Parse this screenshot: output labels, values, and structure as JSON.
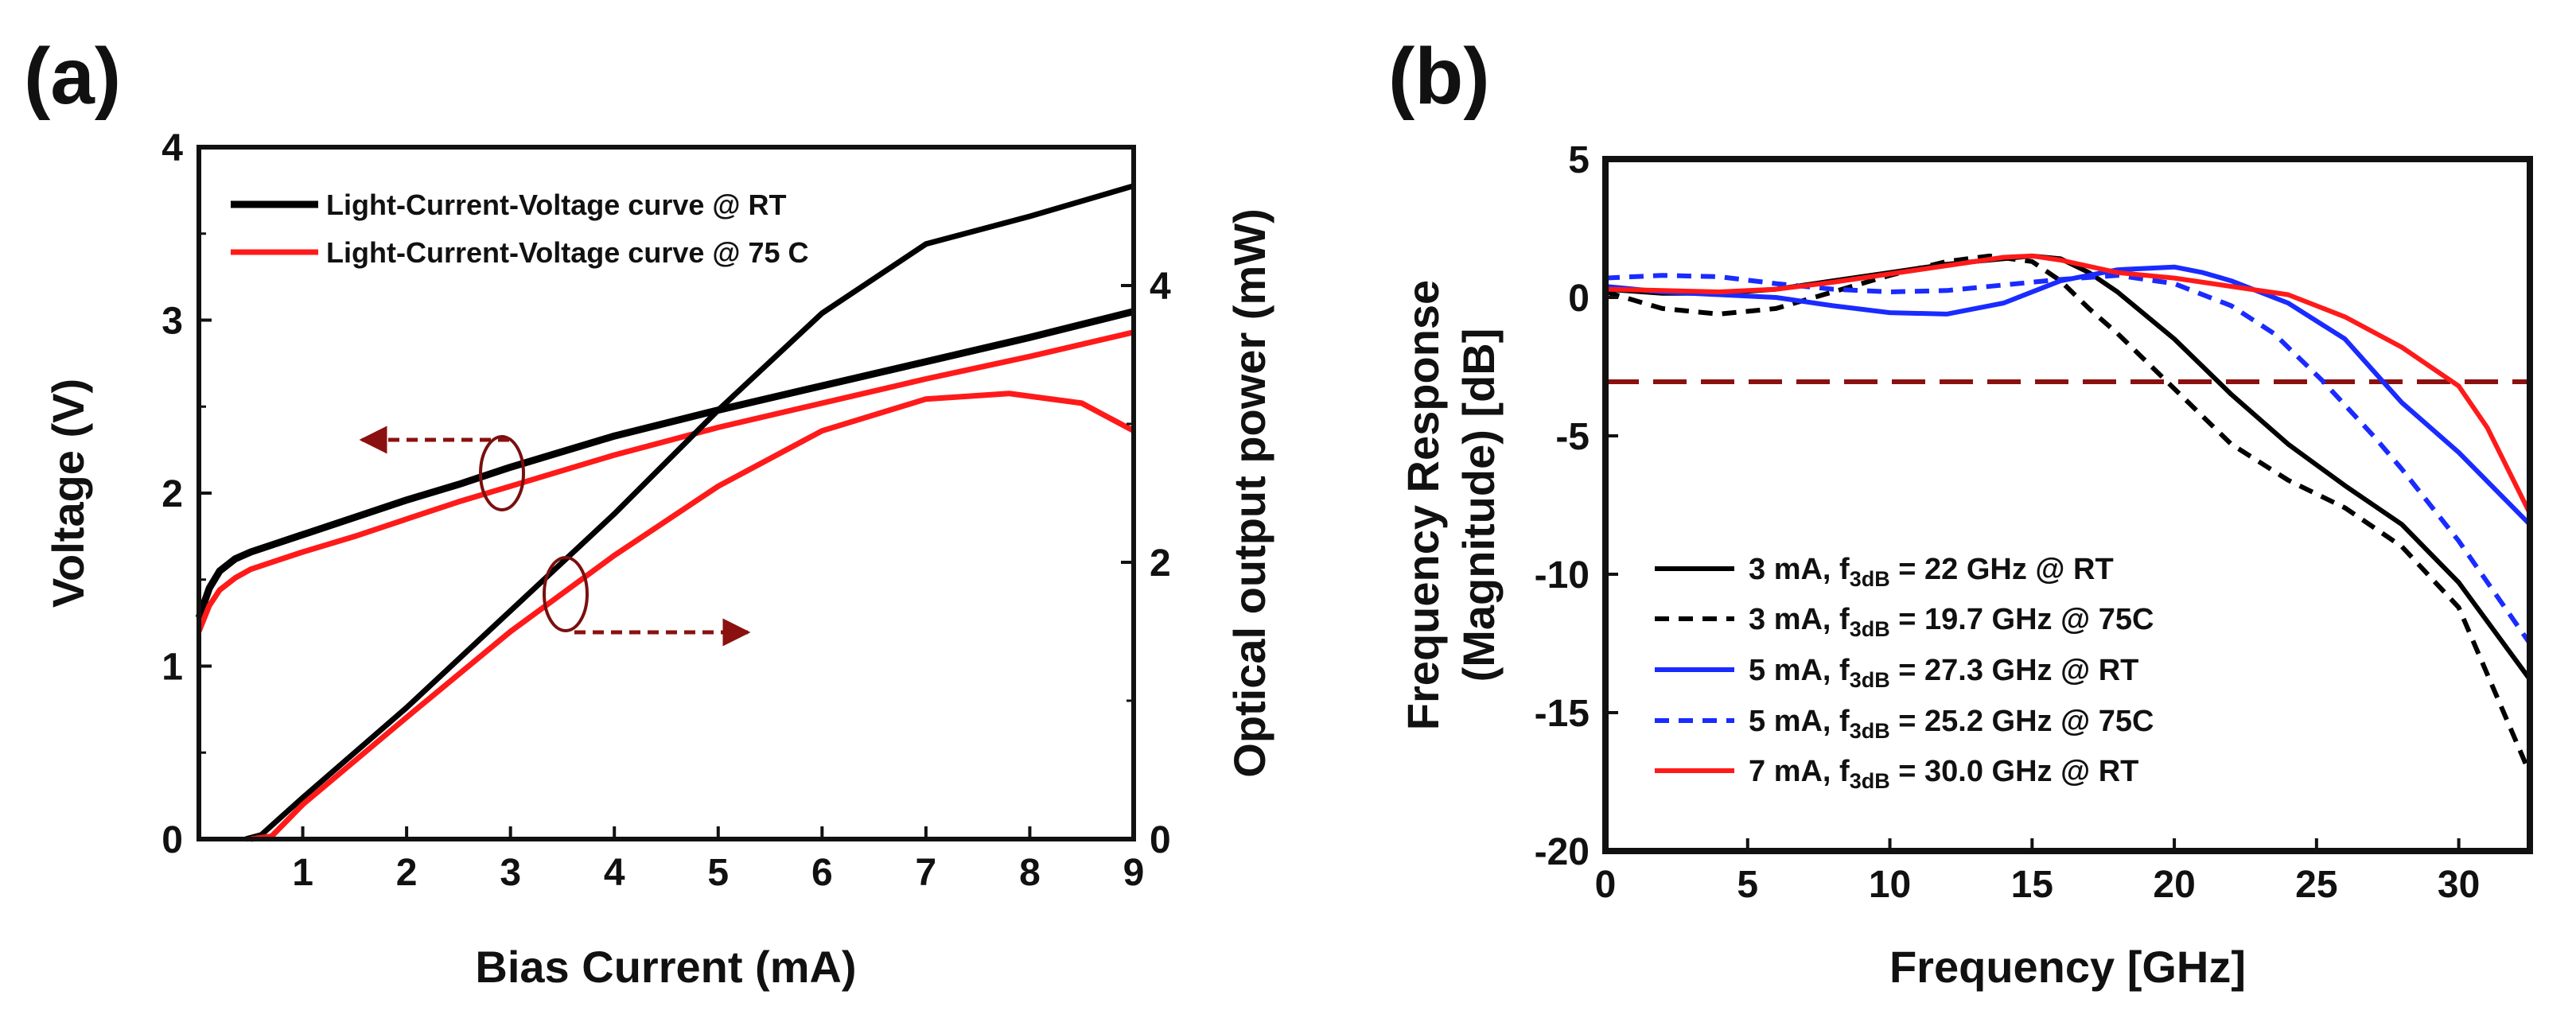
{
  "chart_data": [
    {
      "type": "line",
      "panel": "(a)",
      "xlabel": "Bias Current (mA)",
      "ylabel": "Voltage (V)",
      "y2label": "Optical output power (mW)",
      "xlim": [
        0,
        9
      ],
      "ylim": [
        0,
        4
      ],
      "y2lim": [
        0,
        5
      ],
      "xticks": [
        1,
        2,
        3,
        4,
        5,
        6,
        7,
        8,
        9
      ],
      "yticks": [
        0,
        1,
        2,
        3,
        4
      ],
      "y2ticks": [
        0,
        2,
        4
      ],
      "legend_position": "top-left",
      "legend": [
        {
          "label": "Light-Current-Voltage curve @ RT",
          "color": "#000000"
        },
        {
          "label": "Light-Current-Voltage curve @ 75 C",
          "color": "#ff1a1a"
        }
      ],
      "annotations": [
        {
          "type": "arrow",
          "direction": "left",
          "marks": "voltage curves",
          "axis": "Voltage (V)"
        },
        {
          "type": "arrow",
          "direction": "right",
          "marks": "power curves",
          "axis": "Optical output power (mW)"
        }
      ],
      "series": [
        {
          "name": "Voltage @ RT",
          "color": "#000000",
          "axis": "left",
          "x": [
            0,
            0.1,
            0.2,
            0.35,
            0.5,
            0.75,
            1,
            1.5,
            2,
            2.5,
            3,
            3.5,
            4,
            5,
            6,
            7,
            8,
            9
          ],
          "y": [
            1.28,
            1.45,
            1.55,
            1.62,
            1.66,
            1.71,
            1.76,
            1.86,
            1.96,
            2.05,
            2.15,
            2.24,
            2.33,
            2.48,
            2.62,
            2.76,
            2.9,
            3.05
          ]
        },
        {
          "name": "Voltage @ 75 C",
          "color": "#ff1a1a",
          "axis": "left",
          "x": [
            0,
            0.1,
            0.2,
            0.35,
            0.5,
            0.75,
            1,
            1.5,
            2,
            2.5,
            3,
            3.5,
            4,
            5,
            6,
            7,
            8,
            9
          ],
          "y": [
            1.2,
            1.35,
            1.44,
            1.51,
            1.56,
            1.61,
            1.66,
            1.75,
            1.85,
            1.95,
            2.04,
            2.13,
            2.22,
            2.38,
            2.52,
            2.66,
            2.79,
            2.93
          ]
        },
        {
          "name": "Power @ RT",
          "color": "#000000",
          "axis": "right",
          "x": [
            0.45,
            0.6,
            1,
            2,
            3,
            4,
            5,
            6,
            7,
            8,
            9
          ],
          "y": [
            0,
            0.03,
            0.3,
            0.95,
            1.65,
            2.35,
            3.1,
            3.8,
            4.3,
            4.5,
            4.72
          ]
        },
        {
          "name": "Power @ 75 C",
          "color": "#ff1a1a",
          "axis": "right",
          "x": [
            0.5,
            0.7,
            1,
            2,
            3,
            4,
            5,
            6,
            7,
            7.8,
            8.5,
            9
          ],
          "y": [
            0,
            0.02,
            0.25,
            0.88,
            1.5,
            2.05,
            2.55,
            2.95,
            3.18,
            3.22,
            3.15,
            2.95
          ]
        }
      ]
    },
    {
      "type": "line",
      "panel": "(b)",
      "xlabel": "Frequency [GHz]",
      "ylabel": "Frequency Response",
      "ylabel2": "(Magnitude) [dB]",
      "xlim": [
        0,
        32.5
      ],
      "ylim": [
        -20,
        5
      ],
      "xticks": [
        0,
        5,
        10,
        15,
        20,
        25,
        30
      ],
      "yticks": [
        5,
        0,
        -5,
        -10,
        -15,
        -20
      ],
      "reference_line": {
        "y": -3,
        "color": "#8b1010",
        "style": "dashed"
      },
      "legend_position": "bottom-left",
      "legend": [
        {
          "current": "3 mA, f",
          "sub": "3dB",
          "rest": " = 22 GHz @ RT",
          "color": "#000000",
          "style": "solid"
        },
        {
          "current": "3 mA, f",
          "sub": "3dB",
          "rest": " = 19.7 GHz @ 75C",
          "color": "#000000",
          "style": "dashed"
        },
        {
          "current": "5 mA, f",
          "sub": "3dB",
          "rest": " = 27.3 GHz @ RT",
          "color": "#1a2bff",
          "style": "solid"
        },
        {
          "current": "5 mA, f",
          "sub": "3dB",
          "rest": " = 25.2 GHz @ 75C",
          "color": "#1a2bff",
          "style": "dashed"
        },
        {
          "current": "7 mA, f",
          "sub": "3dB",
          "rest": " = 30.0 GHz @ RT",
          "color": "#ff1a1a",
          "style": "solid"
        }
      ],
      "series": [
        {
          "name": "3 mA @ RT",
          "color": "#000000",
          "dash": false,
          "x": [
            0,
            2,
            4,
            6,
            8,
            10,
            12,
            14,
            15,
            16,
            17,
            18,
            20,
            22,
            24,
            26,
            28,
            30,
            32.5
          ],
          "y": [
            0.3,
            0.15,
            0.15,
            0.3,
            0.6,
            0.9,
            1.2,
            1.4,
            1.5,
            1.4,
            0.9,
            0.2,
            -1.5,
            -3.5,
            -5.3,
            -6.8,
            -8.2,
            -10.3,
            -13.8
          ]
        },
        {
          "name": "3 mA @ 75C",
          "color": "#000000",
          "dash": true,
          "x": [
            0,
            2,
            4,
            6,
            8,
            10,
            12,
            13.5,
            15,
            16,
            17,
            18,
            19.7,
            22,
            24,
            26,
            28,
            30,
            32.5
          ],
          "y": [
            0.2,
            -0.4,
            -0.6,
            -0.4,
            0.2,
            0.8,
            1.3,
            1.5,
            1.3,
            0.6,
            -0.4,
            -1.3,
            -3.0,
            -5.3,
            -6.6,
            -7.6,
            -9.0,
            -11.2,
            -17.2
          ]
        },
        {
          "name": "5 mA @ RT",
          "color": "#1a2bff",
          "dash": false,
          "x": [
            0,
            2,
            4,
            6,
            8,
            10,
            12,
            14,
            16,
            18,
            20,
            21,
            22,
            24,
            26,
            27.3,
            28,
            30,
            32.5
          ],
          "y": [
            0.4,
            0.2,
            0.1,
            0.0,
            -0.3,
            -0.55,
            -0.6,
            -0.2,
            0.6,
            1.0,
            1.1,
            0.9,
            0.6,
            -0.2,
            -1.5,
            -3.0,
            -3.8,
            -5.6,
            -8.2
          ]
        },
        {
          "name": "5 mA @ 75C",
          "color": "#1a2bff",
          "dash": true,
          "x": [
            0,
            2,
            4,
            6,
            8,
            10,
            12,
            14,
            16,
            18,
            20,
            22,
            23.5,
            25.2,
            27,
            28,
            30,
            32.5
          ],
          "y": [
            0.7,
            0.8,
            0.75,
            0.5,
            0.3,
            0.2,
            0.25,
            0.45,
            0.65,
            0.8,
            0.5,
            -0.3,
            -1.3,
            -3.0,
            -5.0,
            -6.2,
            -8.8,
            -12.5
          ]
        },
        {
          "name": "7 mA @ RT",
          "color": "#ff1a1a",
          "dash": false,
          "x": [
            0,
            2,
            4,
            6,
            8,
            10,
            12,
            14,
            15,
            16,
            18,
            20,
            22,
            24,
            26,
            28,
            30,
            31,
            32.5
          ],
          "y": [
            0.3,
            0.25,
            0.2,
            0.3,
            0.55,
            0.85,
            1.15,
            1.45,
            1.5,
            1.35,
            0.9,
            0.7,
            0.4,
            0.1,
            -0.7,
            -1.8,
            -3.2,
            -4.7,
            -7.8
          ]
        }
      ]
    }
  ]
}
